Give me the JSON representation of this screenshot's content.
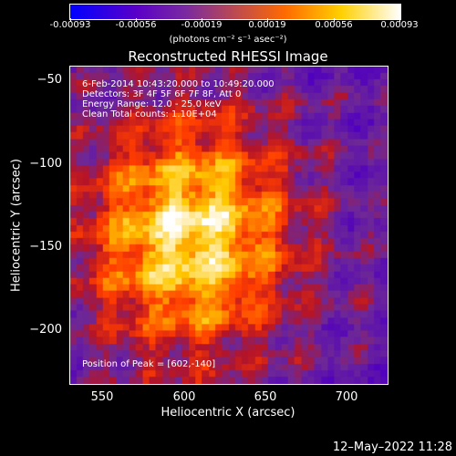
{
  "colorbar": {
    "ticks": [
      "-0.00093",
      "-0.00056",
      "-0.00019",
      "0.00019",
      "0.00056",
      "0.00093"
    ],
    "units": "(photons cm⁻² s⁻¹ asec⁻²)"
  },
  "title": "Reconstructed RHESSI Image",
  "annotations": {
    "time_range": "6-Feb-2014 10:43:20.000 to 10:49:20.000",
    "detectors": "Detectors: 3F 4F 5F 6F 7F 8F, Att 0",
    "energy": "Energy Range: 12.0 - 25.0 keV",
    "clean": "Clean    Total counts: 1.10E+04",
    "peak": "Position of Peak = [602,-140]"
  },
  "axes": {
    "xlabel": "Heliocentric X (arcsec)",
    "ylabel": "Heliocentric Y (arcsec)",
    "xticks": [
      "550",
      "600",
      "650",
      "700"
    ],
    "yticks": [
      "−50",
      "−100",
      "−150",
      "−200"
    ],
    "xlim": [
      530,
      725
    ],
    "ylim": [
      -233,
      -40
    ]
  },
  "timestamp": "12–May–2022 11:28",
  "colors": {
    "low": "#0000ff",
    "mid": "#7a2aa0",
    "high": "#ffffff"
  }
}
